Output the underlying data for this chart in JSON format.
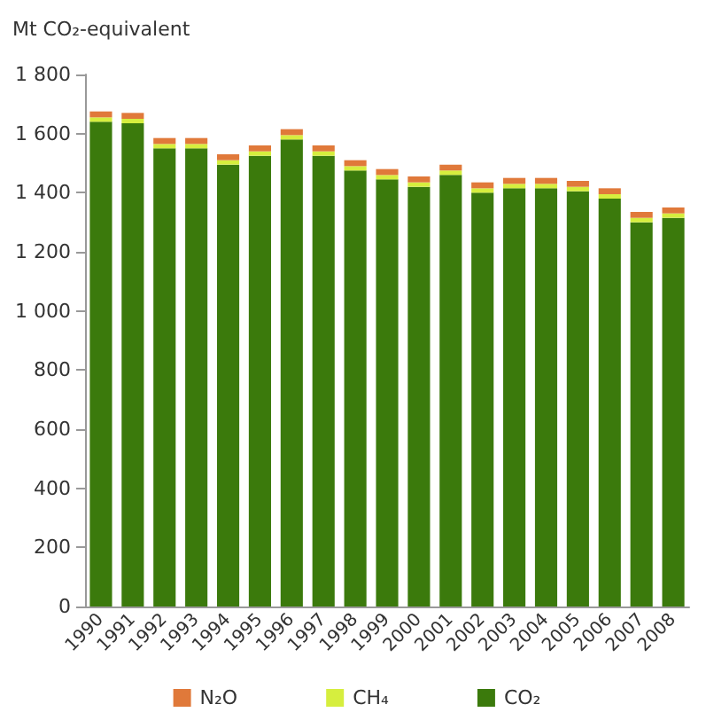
{
  "chart_data": {
    "type": "bar",
    "stacked": true,
    "ylabel": "Mt CO₂-equivalent",
    "categories": [
      "1990",
      "1991",
      "1992",
      "1993",
      "1994",
      "1995",
      "1996",
      "1997",
      "1998",
      "1999",
      "2000",
      "2001",
      "2002",
      "2003",
      "2004",
      "2005",
      "2006",
      "2007",
      "2008"
    ],
    "series": [
      {
        "name": "CO₂",
        "color": "#3b7a0c",
        "values": [
          1640,
          1635,
          1550,
          1550,
          1495,
          1525,
          1580,
          1525,
          1475,
          1445,
          1420,
          1460,
          1400,
          1415,
          1415,
          1405,
          1380,
          1300,
          1315
        ]
      },
      {
        "name": "CH₄",
        "color": "#d6ee3e",
        "values": [
          15,
          15,
          15,
          15,
          15,
          15,
          15,
          15,
          15,
          15,
          15,
          15,
          15,
          15,
          15,
          15,
          15,
          15,
          15
        ]
      },
      {
        "name": "N₂O",
        "color": "#e0793a",
        "values": [
          20,
          20,
          20,
          20,
          20,
          20,
          20,
          20,
          20,
          20,
          20,
          20,
          20,
          20,
          20,
          20,
          20,
          20,
          20
        ]
      }
    ],
    "ylim": [
      0,
      1800
    ],
    "yticks": [
      0,
      200,
      400,
      600,
      800,
      {
        "value": 1000,
        "label": "1 000"
      },
      {
        "value": 1200,
        "label": "1 200"
      },
      {
        "value": 1400,
        "label": "1 400"
      },
      {
        "value": 1600,
        "label": "1 600"
      },
      {
        "value": 1800,
        "label": "1 800"
      }
    ],
    "grid": false,
    "legend": "bottom"
  }
}
